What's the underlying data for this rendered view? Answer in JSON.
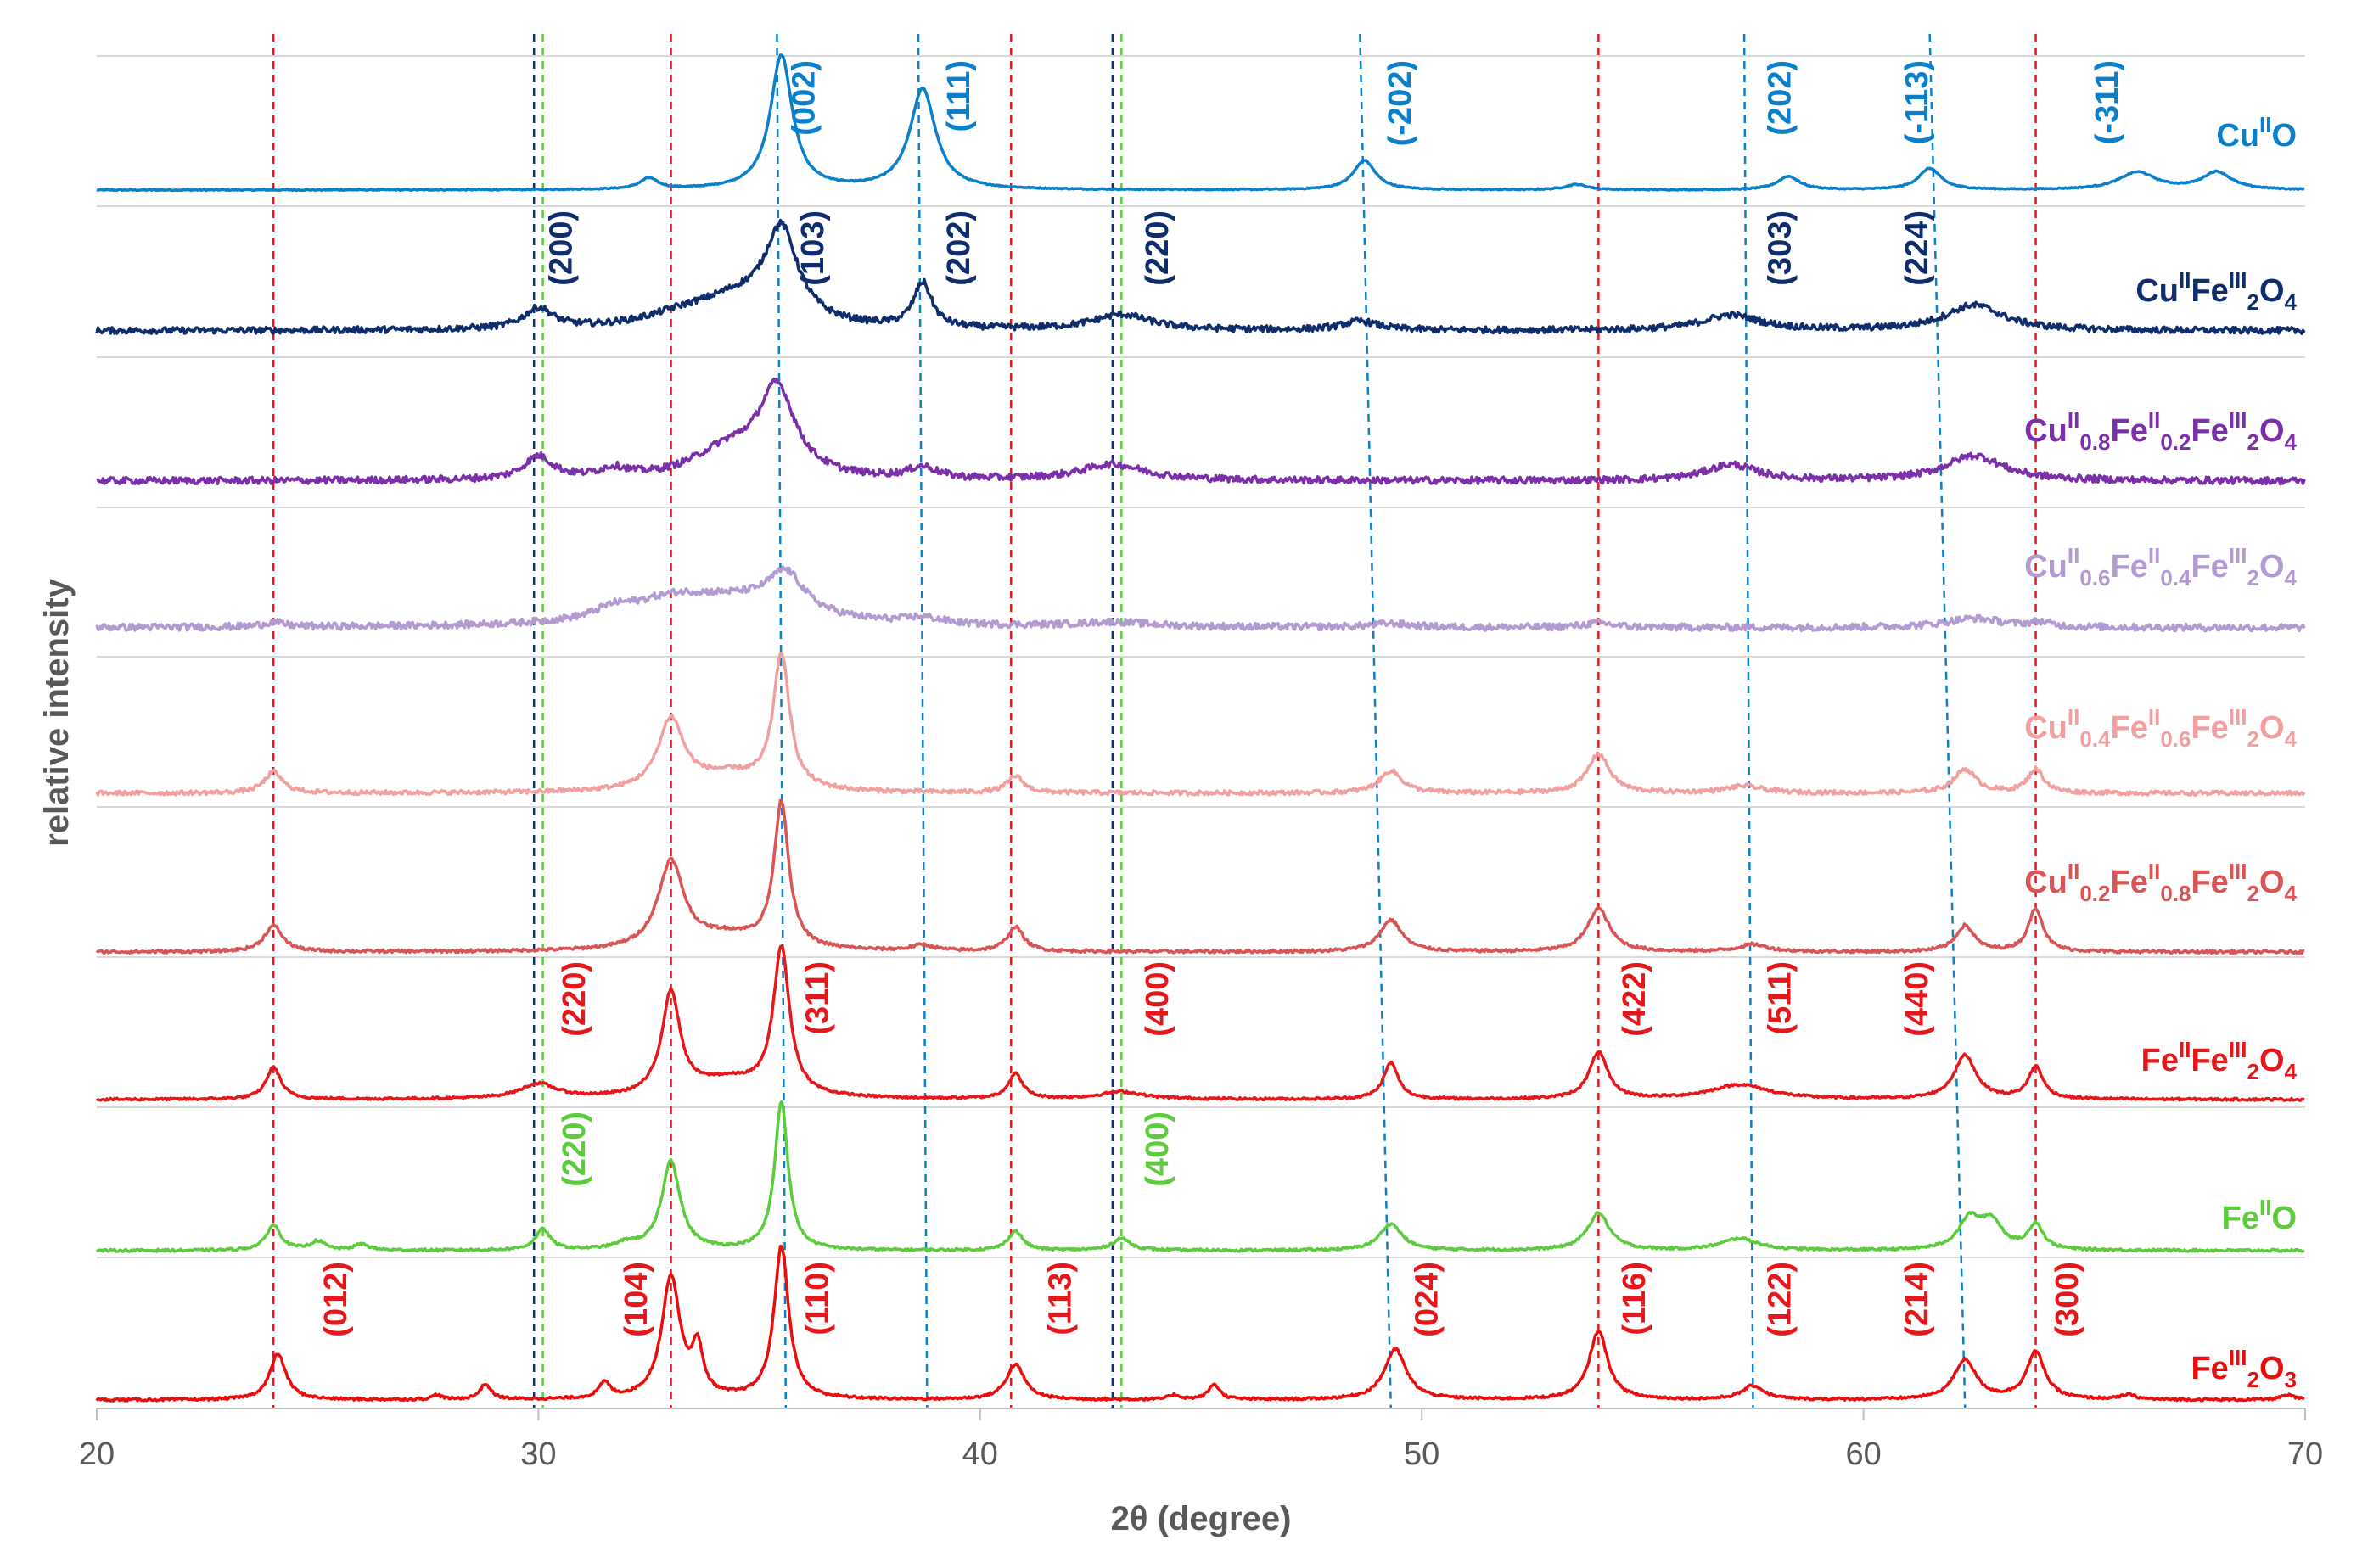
{
  "chart_data": {
    "type": "line",
    "title": "",
    "xlabel": "2θ (degree)",
    "ylabel": "relative intensity",
    "xlim": [
      20,
      70
    ],
    "xticks": [
      "20",
      "30",
      "40",
      "50",
      "60",
      "70"
    ],
    "grid": "horizontal gridline above each trace",
    "series": [
      {
        "name": "CuIIO",
        "label": {
          "parts": [
            {
              "t": "Cu"
            },
            {
              "t": "II",
              "s": "sup"
            },
            {
              "t": "O"
            }
          ]
        },
        "color": "#0a7fcc",
        "noise": 0.004,
        "peaks": [
          [
            32.5,
            0.08,
            0.25
          ],
          [
            35.5,
            1.0,
            0.3
          ],
          [
            38.7,
            0.75,
            0.35
          ],
          [
            48.7,
            0.22,
            0.3
          ],
          [
            53.5,
            0.04,
            0.3
          ],
          [
            58.3,
            0.1,
            0.3
          ],
          [
            61.5,
            0.16,
            0.3
          ],
          [
            66.2,
            0.13,
            0.5
          ],
          [
            68.0,
            0.13,
            0.4
          ]
        ]
      },
      {
        "name": "CuIIFeIII2O4",
        "label": {
          "parts": [
            {
              "t": "Cu"
            },
            {
              "t": "II",
              "s": "sup"
            },
            {
              "t": "Fe"
            },
            {
              "t": "III",
              "s": "sup"
            },
            {
              "t": "2",
              "s": "sub"
            },
            {
              "t": "O"
            },
            {
              "t": "4",
              "s": "sub"
            }
          ]
        },
        "color": "#0f2c6b",
        "noise": 0.025,
        "peaks": [
          [
            30.0,
            0.16,
            0.4
          ],
          [
            33.2,
            0.07,
            1.0
          ],
          [
            35.5,
            0.7,
            0.45
          ],
          [
            34.5,
            0.22,
            1.2
          ],
          [
            38.7,
            0.35,
            0.25
          ],
          [
            43.2,
            0.12,
            0.8
          ],
          [
            48.6,
            0.07,
            0.5
          ],
          [
            57.0,
            0.12,
            0.8
          ],
          [
            62.5,
            0.2,
            0.8
          ]
        ]
      },
      {
        "name": "CuII0.8FeII0.2FeIII2O4",
        "label": {
          "parts": [
            {
              "t": "Cu"
            },
            {
              "t": "II",
              "s": "sup"
            },
            {
              "t": "0.8",
              "s": "sub"
            },
            {
              "t": "Fe"
            },
            {
              "t": "II",
              "s": "sup"
            },
            {
              "t": "0.2",
              "s": "sub"
            },
            {
              "t": "Fe"
            },
            {
              "t": "III",
              "s": "sup"
            },
            {
              "t": "2",
              "s": "sub"
            },
            {
              "t": "O"
            },
            {
              "t": "4",
              "s": "sub"
            }
          ]
        },
        "color": "#7b2fa8",
        "noise": 0.03,
        "peaks": [
          [
            30.0,
            0.2,
            0.4
          ],
          [
            31.7,
            0.08,
            0.4
          ],
          [
            35.4,
            0.75,
            0.5
          ],
          [
            34.3,
            0.25,
            1.0
          ],
          [
            38.7,
            0.1,
            0.4
          ],
          [
            43.0,
            0.14,
            0.9
          ],
          [
            57.0,
            0.14,
            0.7
          ],
          [
            62.5,
            0.22,
            0.8
          ]
        ]
      },
      {
        "name": "CuII0.6FeII0.4FeIII2O4",
        "label": {
          "parts": [
            {
              "t": "Cu"
            },
            {
              "t": "II",
              "s": "sup"
            },
            {
              "t": "0.6",
              "s": "sub"
            },
            {
              "t": "Fe"
            },
            {
              "t": "II",
              "s": "sup"
            },
            {
              "t": "0.4",
              "s": "sub"
            },
            {
              "t": "Fe"
            },
            {
              "t": "III",
              "s": "sup"
            },
            {
              "t": "2",
              "s": "sub"
            },
            {
              "t": "O"
            },
            {
              "t": "4",
              "s": "sub"
            }
          ]
        },
        "color": "#b39ad0",
        "noise": 0.045,
        "peaks": [
          [
            24.0,
            0.06,
            0.3
          ],
          [
            31.7,
            0.12,
            0.5
          ],
          [
            33.0,
            0.25,
            1.2
          ],
          [
            35.6,
            0.5,
            0.5
          ],
          [
            34.5,
            0.3,
            1.8
          ],
          [
            38.7,
            0.08,
            0.5
          ],
          [
            43.0,
            0.06,
            1.0
          ],
          [
            49.3,
            0.05,
            0.5
          ],
          [
            54.0,
            0.06,
            0.4
          ],
          [
            62.5,
            0.12,
            0.8
          ],
          [
            64.0,
            0.06,
            0.3
          ]
        ]
      },
      {
        "name": "CuII0.4FeII0.6FeIII2O4",
        "label": {
          "parts": [
            {
              "t": "Cu"
            },
            {
              "t": "II",
              "s": "sup"
            },
            {
              "t": "0.4",
              "s": "sub"
            },
            {
              "t": "Fe"
            },
            {
              "t": "II",
              "s": "sup"
            },
            {
              "t": "0.6",
              "s": "sub"
            },
            {
              "t": "Fe"
            },
            {
              "t": "III",
              "s": "sup"
            },
            {
              "t": "2",
              "s": "sub"
            },
            {
              "t": "O"
            },
            {
              "t": "4",
              "s": "sub"
            }
          ]
        },
        "color": "#f0a0a0",
        "noise": 0.015,
        "peaks": [
          [
            24.0,
            0.15,
            0.25
          ],
          [
            33.0,
            0.5,
            0.35
          ],
          [
            35.5,
            0.95,
            0.22
          ],
          [
            34.3,
            0.12,
            1.0
          ],
          [
            40.8,
            0.12,
            0.22
          ],
          [
            49.3,
            0.16,
            0.3
          ],
          [
            54.0,
            0.28,
            0.3
          ],
          [
            57.3,
            0.05,
            0.5
          ],
          [
            62.3,
            0.17,
            0.3
          ],
          [
            63.9,
            0.17,
            0.22
          ]
        ]
      },
      {
        "name": "CuII0.2FeII0.8FeIII2O4",
        "label": {
          "parts": [
            {
              "t": "Cu"
            },
            {
              "t": "II",
              "s": "sup"
            },
            {
              "t": "0.2",
              "s": "sub"
            },
            {
              "t": "Fe"
            },
            {
              "t": "II",
              "s": "sup"
            },
            {
              "t": "0.8",
              "s": "sub"
            },
            {
              "t": "Fe"
            },
            {
              "t": "III",
              "s": "sup"
            },
            {
              "t": "2",
              "s": "sub"
            },
            {
              "t": "O"
            },
            {
              "t": "4",
              "s": "sub"
            }
          ]
        },
        "color": "#d95454",
        "noise": 0.01,
        "peaks": [
          [
            24.0,
            0.18,
            0.25
          ],
          [
            33.0,
            0.6,
            0.35
          ],
          [
            35.5,
            1.0,
            0.2
          ],
          [
            34.3,
            0.1,
            1.0
          ],
          [
            38.7,
            0.04,
            0.3
          ],
          [
            40.8,
            0.17,
            0.22
          ],
          [
            49.3,
            0.22,
            0.3
          ],
          [
            54.0,
            0.3,
            0.3
          ],
          [
            57.5,
            0.05,
            0.4
          ],
          [
            62.3,
            0.18,
            0.25
          ],
          [
            63.9,
            0.3,
            0.2
          ]
        ]
      },
      {
        "name": "FeIIFeIII2O4",
        "label": {
          "parts": [
            {
              "t": "Fe"
            },
            {
              "t": "II",
              "s": "sup"
            },
            {
              "t": "Fe"
            },
            {
              "t": "III",
              "s": "sup"
            },
            {
              "t": "2",
              "s": "sub"
            },
            {
              "t": "O"
            },
            {
              "t": "4",
              "s": "sub"
            }
          ]
        },
        "color": "#e5171a",
        "noise": 0.008,
        "peaks": [
          [
            24.0,
            0.22,
            0.2
          ],
          [
            30.0,
            0.1,
            0.5
          ],
          [
            33.0,
            0.7,
            0.25
          ],
          [
            35.5,
            1.0,
            0.22
          ],
          [
            34.3,
            0.12,
            1.0
          ],
          [
            40.8,
            0.17,
            0.2
          ],
          [
            43.2,
            0.05,
            0.6
          ],
          [
            49.3,
            0.25,
            0.2
          ],
          [
            54.0,
            0.32,
            0.25
          ],
          [
            57.2,
            0.1,
            0.8
          ],
          [
            62.3,
            0.3,
            0.3
          ],
          [
            63.9,
            0.22,
            0.2
          ]
        ]
      },
      {
        "name": "FeIIO",
        "label": {
          "parts": [
            {
              "t": "Fe"
            },
            {
              "t": "II",
              "s": "sup"
            },
            {
              "t": "O"
            }
          ]
        },
        "color": "#5ccc3c",
        "noise": 0.008,
        "peaks": [
          [
            24.0,
            0.17,
            0.2
          ],
          [
            25.0,
            0.06,
            0.2
          ],
          [
            26.0,
            0.04,
            0.2
          ],
          [
            30.1,
            0.14,
            0.2
          ],
          [
            32.0,
            0.04,
            0.3
          ],
          [
            33.0,
            0.6,
            0.25
          ],
          [
            35.5,
            1.0,
            0.18
          ],
          [
            40.8,
            0.13,
            0.2
          ],
          [
            43.2,
            0.08,
            0.25
          ],
          [
            49.3,
            0.18,
            0.3
          ],
          [
            54.0,
            0.25,
            0.3
          ],
          [
            57.2,
            0.08,
            0.5
          ],
          [
            62.4,
            0.2,
            0.3
          ],
          [
            62.9,
            0.18,
            0.3
          ],
          [
            63.9,
            0.17,
            0.2
          ]
        ]
      },
      {
        "name": "FeIII2O3",
        "label": {
          "parts": [
            {
              "t": "Fe"
            },
            {
              "t": "III",
              "s": "sup"
            },
            {
              "t": "2",
              "s": "sub"
            },
            {
              "t": "O"
            },
            {
              "t": "3",
              "s": "sub"
            }
          ]
        },
        "color": "#ea0d0d",
        "noise": 0.008,
        "peaks": [
          [
            24.1,
            0.3,
            0.22
          ],
          [
            27.7,
            0.03,
            0.12
          ],
          [
            28.8,
            0.1,
            0.15
          ],
          [
            31.5,
            0.1,
            0.15
          ],
          [
            33.0,
            0.8,
            0.25
          ],
          [
            33.6,
            0.3,
            0.15
          ],
          [
            35.5,
            1.0,
            0.2
          ],
          [
            40.8,
            0.23,
            0.25
          ],
          [
            44.4,
            0.03,
            0.15
          ],
          [
            45.3,
            0.1,
            0.15
          ],
          [
            49.4,
            0.33,
            0.3
          ],
          [
            54.0,
            0.45,
            0.25
          ],
          [
            57.5,
            0.09,
            0.3
          ],
          [
            62.3,
            0.26,
            0.3
          ],
          [
            63.9,
            0.31,
            0.25
          ],
          [
            66.0,
            0.03,
            0.2
          ],
          [
            69.6,
            0.03,
            0.2
          ]
        ]
      }
    ],
    "reference_lines": [
      {
        "color": "#e5171a",
        "x_top": 24.0,
        "x_bottom": 24.0
      },
      {
        "color": "#e5171a",
        "x_top": 33.0,
        "x_bottom": 33.0
      },
      {
        "color": "#e5171a",
        "x_top": 40.7,
        "x_bottom": 40.7
      },
      {
        "color": "#e5171a",
        "x_top": 54.0,
        "x_bottom": 54.0
      },
      {
        "color": "#e5171a",
        "x_top": 63.9,
        "x_bottom": 63.9
      },
      {
        "color": "#0f2c6b",
        "x_top": 29.9,
        "x_bottom": 29.9
      },
      {
        "color": "#0f2c6b",
        "x_top": 43.0,
        "x_bottom": 43.0
      },
      {
        "color": "#0a7fcc",
        "x_top": 35.4,
        "x_bottom": 35.6
      },
      {
        "color": "#0a7fcc",
        "x_top": 38.6,
        "x_bottom": 38.8
      },
      {
        "color": "#0a7fcc",
        "x_top": 48.6,
        "x_bottom": 49.3
      },
      {
        "color": "#0a7fcc",
        "x_top": 57.3,
        "x_bottom": 57.5
      },
      {
        "color": "#0a7fcc",
        "x_top": 61.5,
        "x_bottom": 62.3
      },
      {
        "color": "#5ccc3c",
        "x_top": 30.1,
        "x_bottom": 30.1
      },
      {
        "color": "#5ccc3c",
        "x_top": 43.2,
        "x_bottom": 43.2
      }
    ],
    "annotations": [
      {
        "text": "(002)",
        "x": 36.0,
        "series": 0,
        "color": "#0a7fcc"
      },
      {
        "text": "(111)",
        "x": 39.5,
        "series": 0,
        "color": "#0a7fcc"
      },
      {
        "text": "(-202)",
        "x": 49.5,
        "series": 0,
        "color": "#0a7fcc"
      },
      {
        "text": "(202)",
        "x": 58.1,
        "series": 0,
        "color": "#0a7fcc"
      },
      {
        "text": "(-113)",
        "x": 61.2,
        "series": 0,
        "color": "#0a7fcc"
      },
      {
        "text": "(-311)",
        "x": 65.5,
        "series": 0,
        "color": "#0a7fcc"
      },
      {
        "text": "(200)",
        "x": 30.5,
        "series": 1,
        "color": "#0f2c6b"
      },
      {
        "text": "(103)",
        "x": 36.2,
        "series": 1,
        "color": "#0f2c6b"
      },
      {
        "text": "(202)",
        "x": 39.5,
        "series": 1,
        "color": "#0f2c6b"
      },
      {
        "text": "(220)",
        "x": 44.0,
        "series": 1,
        "color": "#0f2c6b"
      },
      {
        "text": "(303)",
        "x": 58.1,
        "series": 1,
        "color": "#0f2c6b"
      },
      {
        "text": "(224)",
        "x": 61.2,
        "series": 1,
        "color": "#0f2c6b"
      },
      {
        "text": "(220)",
        "x": 30.8,
        "series": 6,
        "color": "#e5171a"
      },
      {
        "text": "(311)",
        "x": 36.3,
        "series": 6,
        "color": "#e5171a"
      },
      {
        "text": "(400)",
        "x": 44.0,
        "series": 6,
        "color": "#e5171a"
      },
      {
        "text": "(422)",
        "x": 54.8,
        "series": 6,
        "color": "#e5171a"
      },
      {
        "text": "(511)",
        "x": 58.1,
        "series": 6,
        "color": "#e5171a"
      },
      {
        "text": "(440)",
        "x": 61.2,
        "series": 6,
        "color": "#e5171a"
      },
      {
        "text": "(220)",
        "x": 30.8,
        "series": 7,
        "color": "#5ccc3c"
      },
      {
        "text": "(400)",
        "x": 44.0,
        "series": 7,
        "color": "#5ccc3c"
      },
      {
        "text": "(012)",
        "x": 25.4,
        "series": 8,
        "color": "#e5171a"
      },
      {
        "text": "(104)",
        "x": 32.2,
        "series": 8,
        "color": "#e5171a"
      },
      {
        "text": "(110)",
        "x": 36.3,
        "series": 8,
        "color": "#e5171a"
      },
      {
        "text": "(113)",
        "x": 41.8,
        "series": 8,
        "color": "#e5171a"
      },
      {
        "text": "(024)",
        "x": 50.1,
        "series": 8,
        "color": "#e5171a"
      },
      {
        "text": "(116)",
        "x": 54.8,
        "series": 8,
        "color": "#e5171a"
      },
      {
        "text": "(122)",
        "x": 58.1,
        "series": 8,
        "color": "#e5171a"
      },
      {
        "text": "(214)",
        "x": 61.2,
        "series": 8,
        "color": "#e5171a"
      },
      {
        "text": "(300)",
        "x": 64.6,
        "series": 8,
        "color": "#e5171a"
      }
    ]
  }
}
